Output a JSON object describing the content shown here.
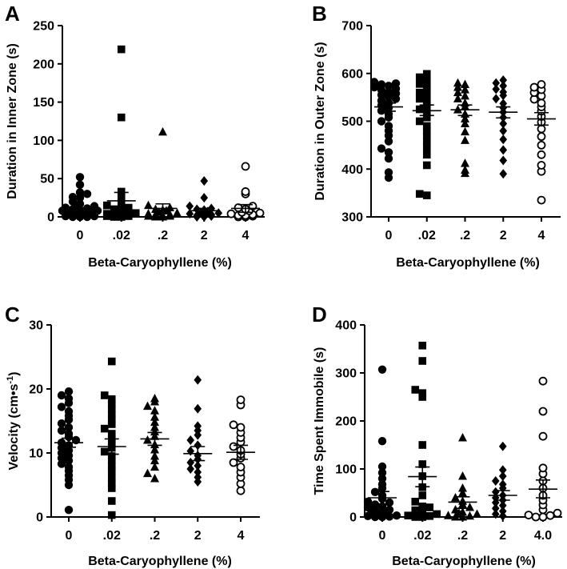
{
  "chart_data": [
    {
      "panel": "A",
      "type": "scatter",
      "xlabel": "Beta-Caryophyllene (%)",
      "ylabel": "Duration in Inner Zone (s)",
      "categories": [
        "0",
        ".02",
        ".2",
        "2",
        "4"
      ],
      "yticks": [
        "0",
        "50",
        "100",
        "150",
        "200",
        "250"
      ],
      "ylim": [
        0,
        250
      ],
      "markers": [
        "circle",
        "square",
        "triangle",
        "diamond",
        "circle-open"
      ],
      "groups": [
        {
          "mean": 6,
          "sem_low": 3,
          "sem_high": 9,
          "values": [
            52,
            42,
            32,
            26,
            20,
            15,
            12,
            10,
            9,
            8,
            7,
            6,
            5,
            4,
            3,
            2,
            1,
            0,
            0,
            0,
            1,
            2,
            3,
            5,
            8,
            11,
            14,
            17,
            25,
            30
          ]
        },
        {
          "mean": 21,
          "sem_low": 10,
          "sem_high": 32,
          "values": [
            219,
            130,
            33,
            25,
            18,
            15,
            12,
            9,
            6,
            4,
            3,
            2,
            1,
            0,
            0,
            1,
            3,
            5,
            8,
            10
          ]
        },
        {
          "mean": 11,
          "sem_low": 4,
          "sem_high": 17,
          "values": [
            111,
            15,
            12,
            9,
            6,
            4,
            3,
            2,
            1,
            0,
            0,
            1,
            3,
            5,
            8,
            10
          ]
        },
        {
          "mean": 8,
          "sem_low": 5,
          "sem_high": 11,
          "values": [
            47,
            25,
            14,
            11,
            9,
            7,
            5,
            4,
            3,
            2,
            1,
            0,
            0,
            2,
            6,
            10
          ]
        },
        {
          "mean": 11,
          "sem_low": 6,
          "sem_high": 16,
          "values": [
            66,
            33,
            30,
            14,
            12,
            10,
            8,
            6,
            4,
            3,
            2,
            1,
            0,
            0,
            2,
            5
          ]
        }
      ]
    },
    {
      "panel": "B",
      "type": "scatter",
      "xlabel": "Beta-Caryophyllene (%)",
      "ylabel": "Duration in Outer Zone (s)",
      "categories": [
        "0",
        ".02",
        ".2",
        "2",
        "4"
      ],
      "yticks": [
        "300",
        "400",
        "500",
        "600",
        "700"
      ],
      "ylim": [
        300,
        700
      ],
      "markers": [
        "circle",
        "square",
        "triangle",
        "diamond",
        "circle-open"
      ],
      "groups": [
        {
          "mean": 530,
          "sem_low": 521,
          "sem_high": 538,
          "values": [
            582,
            579,
            577,
            574,
            571,
            568,
            565,
            561,
            558,
            555,
            551,
            547,
            543,
            538,
            533,
            528,
            522,
            515,
            508,
            500,
            490,
            480,
            470,
            458,
            443,
            435,
            422,
            393,
            382
          ]
        },
        {
          "mean": 522,
          "sem_low": 512,
          "sem_high": 534,
          "values": [
            599,
            592,
            585,
            578,
            572,
            565,
            560,
            553,
            547,
            540,
            533,
            525,
            517,
            508,
            500,
            490,
            480,
            470,
            458,
            445,
            430,
            408,
            348,
            345
          ]
        },
        {
          "mean": 524,
          "sem_low": 512,
          "sem_high": 534,
          "values": [
            580,
            577,
            571,
            566,
            560,
            553,
            547,
            538,
            531,
            524,
            515,
            505,
            495,
            478,
            460,
            412,
            398,
            391
          ]
        },
        {
          "mean": 519,
          "sem_low": 507,
          "sem_high": 530,
          "values": [
            586,
            580,
            574,
            567,
            561,
            554,
            547,
            537,
            528,
            519,
            508,
            495,
            480,
            462,
            440,
            418,
            390
          ]
        },
        {
          "mean": 505,
          "sem_low": 492,
          "sem_high": 518,
          "values": [
            577,
            571,
            566,
            560,
            553,
            546,
            538,
            530,
            521,
            510,
            498,
            484,
            468,
            450,
            430,
            408,
            395,
            335
          ]
        }
      ]
    },
    {
      "panel": "C",
      "type": "scatter",
      "xlabel": "Beta-Caryophyllene (%)",
      "ylabel": "Velocity (cm•s-1)",
      "ylabel_text": "Velocity (cm•s",
      "ylabel_superscript": "-1",
      "ylabel_close": ")",
      "categories": [
        "0",
        ".02",
        ".2",
        "2",
        "4"
      ],
      "yticks": [
        "0",
        "10",
        "20",
        "30"
      ],
      "ylim": [
        0,
        30
      ],
      "markers": [
        "circle",
        "square",
        "triangle",
        "diamond",
        "circle-open"
      ],
      "groups": [
        {
          "mean": 11.6,
          "sem_low": 10.9,
          "sem_high": 12.3,
          "values": [
            19.6,
            19.0,
            18.5,
            17.8,
            17.2,
            16.5,
            15.8,
            15.2,
            14.6,
            14.0,
            13.5,
            13.0,
            12.5,
            12.0,
            11.6,
            11.2,
            10.8,
            10.4,
            10.0,
            9.6,
            9.2,
            8.8,
            8.3,
            7.8,
            7.2,
            6.5,
            5.8,
            5.0,
            1.1
          ]
        },
        {
          "mean": 11.0,
          "sem_low": 9.8,
          "sem_high": 12.2,
          "values": [
            24.3,
            19.0,
            18.4,
            17.6,
            16.8,
            16.0,
            15.2,
            14.5,
            13.8,
            13.0,
            12.2,
            11.5,
            10.8,
            10.2,
            9.5,
            8.8,
            8.0,
            7.2,
            6.2,
            5.2,
            4.5,
            2.5,
            0.3
          ]
        },
        {
          "mean": 12.2,
          "sem_low": 11.2,
          "sem_high": 13.2,
          "values": [
            18.5,
            18.0,
            17.3,
            16.6,
            15.6,
            14.8,
            14.0,
            13.3,
            12.6,
            12.0,
            11.3,
            10.5,
            9.5,
            8.8,
            7.8,
            6.8,
            6.0
          ]
        },
        {
          "mean": 9.9,
          "sem_low": 8.8,
          "sem_high": 11.0,
          "values": [
            21.4,
            16.9,
            14.2,
            13.5,
            12.8,
            12.0,
            11.2,
            10.3,
            9.6,
            9.0,
            8.5,
            8.0,
            7.5,
            7.0,
            6.2,
            5.5
          ]
        },
        {
          "mean": 10.1,
          "sem_low": 9.0,
          "sem_high": 11.2,
          "values": [
            18.3,
            17.5,
            14.4,
            14.0,
            13.2,
            12.4,
            11.7,
            11.0,
            10.4,
            9.8,
            9.2,
            8.5,
            7.8,
            7.0,
            6.2,
            5.2,
            4.1
          ]
        }
      ]
    },
    {
      "panel": "D",
      "type": "scatter",
      "xlabel": "Beta-Caryophyllene (%)",
      "ylabel": "Time Spent Immobile (s)",
      "categories": [
        "0",
        ".02",
        ".2",
        "2",
        "4.0"
      ],
      "yticks": [
        "0",
        "100",
        "200",
        "300",
        "400"
      ],
      "ylim": [
        0,
        400
      ],
      "markers": [
        "circle",
        "square",
        "triangle",
        "diamond",
        "circle-open"
      ],
      "groups": [
        {
          "mean": 40,
          "sem_low": 27,
          "sem_high": 53,
          "values": [
            307,
            158,
            105,
            92,
            80,
            68,
            60,
            52,
            45,
            38,
            32,
            26,
            20,
            15,
            10,
            6,
            3,
            1,
            0,
            0,
            2,
            5,
            9,
            14,
            22,
            30
          ]
        },
        {
          "mean": 84,
          "sem_low": 63,
          "sem_high": 104,
          "values": [
            357,
            325,
            265,
            258,
            250,
            150,
            110,
            85,
            62,
            45,
            32,
            22,
            14,
            8,
            3,
            0,
            0,
            2,
            6,
            12,
            20
          ]
        },
        {
          "mean": 31,
          "sem_low": 18,
          "sem_high": 42,
          "values": [
            165,
            85,
            60,
            50,
            40,
            33,
            26,
            20,
            15,
            10,
            6,
            3,
            0,
            0,
            2,
            8
          ]
        },
        {
          "mean": 45,
          "sem_low": 35,
          "sem_high": 55,
          "values": [
            147,
            98,
            85,
            75,
            68,
            60,
            52,
            45,
            40,
            35,
            30,
            24,
            18,
            12,
            6,
            2
          ]
        },
        {
          "mean": 58,
          "sem_low": 40,
          "sem_high": 77,
          "values": [
            283,
            220,
            168,
            102,
            90,
            75,
            60,
            45,
            35,
            25,
            15,
            8,
            3,
            0,
            0,
            4
          ]
        }
      ]
    }
  ]
}
